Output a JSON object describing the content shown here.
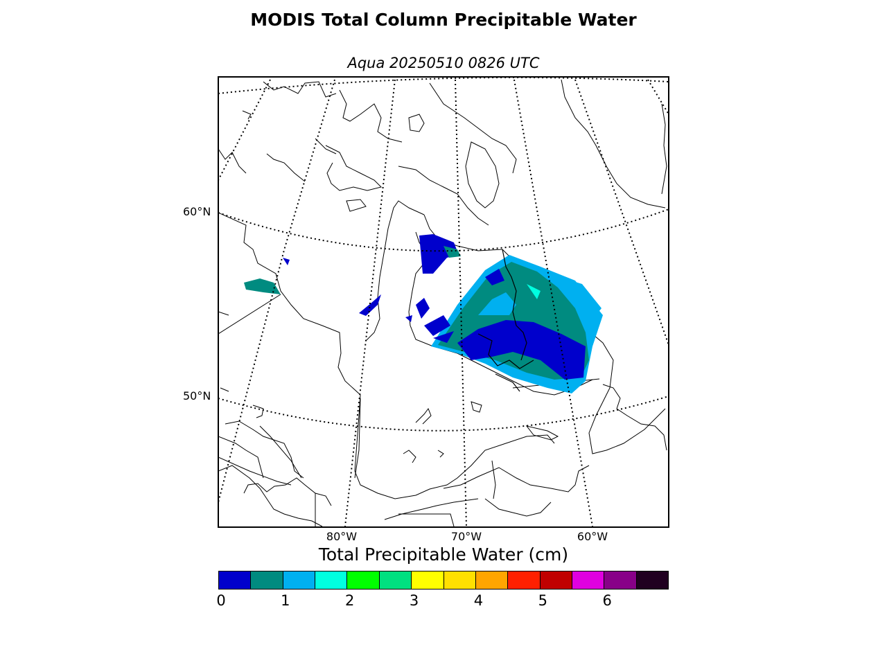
{
  "title": "MODIS Total Column Precipitable Water",
  "subtitle": "Aqua 20250510 0826 UTC",
  "map": {
    "lat_labels": [
      "60°N",
      "50°N"
    ],
    "lon_labels": [
      "80°W",
      "70°W",
      "60°W"
    ],
    "graticule_style": "dotted",
    "land_color": "#ffffff",
    "coast_color": "#000000"
  },
  "colorbar": {
    "title": "Total Precipitable Water (cm)",
    "colors": [
      "#0000cc",
      "#008b80",
      "#00b0f0",
      "#00ffe0",
      "#00ff00",
      "#00e080",
      "#ffff00",
      "#ffe000",
      "#ffa500",
      "#ff2000",
      "#c00000",
      "#e000e0",
      "#880088",
      "#200020"
    ],
    "ticks": [
      "0",
      "1",
      "2",
      "3",
      "4",
      "5",
      "6"
    ],
    "range": [
      0,
      7
    ]
  }
}
